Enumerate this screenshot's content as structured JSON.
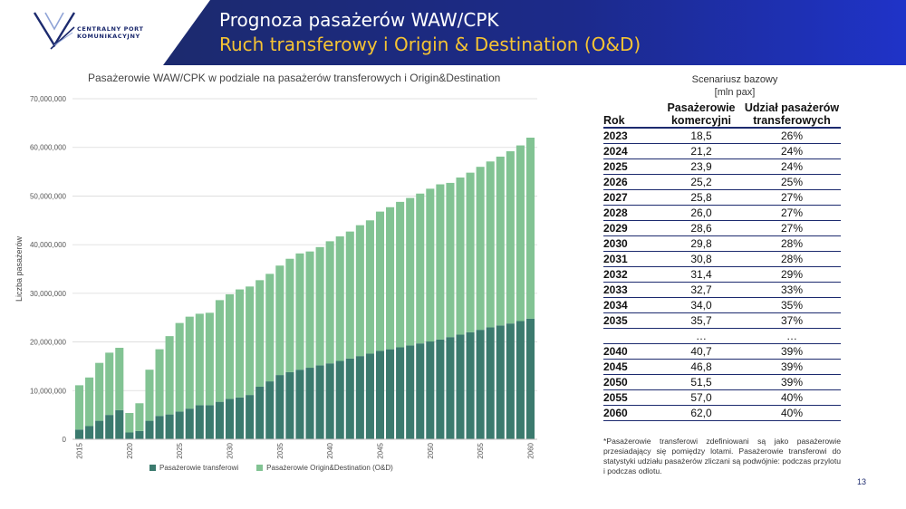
{
  "header": {
    "title_line1": "Prognoza pasażerów WAW/CPK",
    "title_line2": "Ruch transferowy i Origin & Destination (O&D)",
    "logo_text_line1": "CENTRALNY PORT",
    "logo_text_line2": "KOMUNIKACYJNY",
    "colors": {
      "navy": "#1c2a6e",
      "blue": "#1f33b8",
      "gold": "#f6c433"
    }
  },
  "chart_data": {
    "type": "bar",
    "stacked": true,
    "title": "Pasażerowie WAW/CPK w podziale na pasażerów transferowych i Origin&Destination",
    "xlabel": "",
    "ylabel": "Liczba pasażerów",
    "ylim": [
      0,
      70000000
    ],
    "yticks": [
      "0",
      "10,000,000",
      "20,000,000",
      "30,000,000",
      "40,000,000",
      "50,000,000",
      "60,000,000",
      "70,000,000"
    ],
    "ytick_values": [
      0,
      10000000,
      20000000,
      30000000,
      40000000,
      50000000,
      60000000,
      70000000
    ],
    "xtick_labels": [
      "2015",
      "2020",
      "2025",
      "2030",
      "2035",
      "2040",
      "2045",
      "2050",
      "2055",
      "2060"
    ],
    "categories": [
      2015,
      2016,
      2017,
      2018,
      2019,
      2020,
      2021,
      2022,
      2023,
      2024,
      2025,
      2026,
      2027,
      2028,
      2029,
      2030,
      2031,
      2032,
      2033,
      2034,
      2035,
      2036,
      2037,
      2038,
      2039,
      2040,
      2041,
      2042,
      2043,
      2044,
      2045,
      2046,
      2047,
      2048,
      2049,
      2050,
      2051,
      2052,
      2053,
      2054,
      2055,
      2056,
      2057,
      2058,
      2059,
      2060
    ],
    "series": [
      {
        "name": "Pasażerowie transferowi",
        "color": "#3b7a6e",
        "values": [
          2000000,
          2700000,
          3800000,
          5000000,
          6000000,
          1400000,
          1700000,
          3800000,
          4800000,
          5100000,
          5700000,
          6300000,
          7000000,
          7000000,
          7700000,
          8300000,
          8600000,
          9100000,
          10800000,
          11900000,
          13200000,
          13800000,
          14300000,
          14700000,
          15200000,
          15600000,
          16100000,
          16600000,
          17100000,
          17600000,
          18200000,
          18500000,
          18900000,
          19300000,
          19700000,
          20100000,
          20500000,
          21000000,
          21500000,
          22000000,
          22500000,
          23000000,
          23400000,
          23800000,
          24300000,
          24800000
        ]
      },
      {
        "name": "Pasażerowie Origin&Destination (O&D)",
        "color": "#82c393",
        "values": [
          9100000,
          10000000,
          11900000,
          12800000,
          12800000,
          4000000,
          5700000,
          10500000,
          13700000,
          16100000,
          18200000,
          18900000,
          18800000,
          19000000,
          20900000,
          21500000,
          22200000,
          22300000,
          21900000,
          22100000,
          22500000,
          23300000,
          23900000,
          23900000,
          24300000,
          25100000,
          25600000,
          26100000,
          26900000,
          27400000,
          28600000,
          29200000,
          29900000,
          30300000,
          30800000,
          31400000,
          31900000,
          31700000,
          32300000,
          32800000,
          33500000,
          34100000,
          34700000,
          35400000,
          36100000,
          37200000
        ]
      }
    ],
    "legend_position": "bottom",
    "grid": true
  },
  "legend": {
    "item1": "Pasażerowie transferowi",
    "item2": "Pasażerowie Origin&Destination (O&D)"
  },
  "table": {
    "scenario_title": "Scenariusz bazowy",
    "scenario_unit": "[mln pax]",
    "col_year": "Rok",
    "col_passengers": "Pasażerowie komercyjni",
    "col_transfer_share": "Udział pasażerów transferowych",
    "rows": [
      {
        "year": "2023",
        "pax": "18,5",
        "share": "26%"
      },
      {
        "year": "2024",
        "pax": "21,2",
        "share": "24%"
      },
      {
        "year": "2025",
        "pax": "23,9",
        "share": "24%"
      },
      {
        "year": "2026",
        "pax": "25,2",
        "share": "25%"
      },
      {
        "year": "2027",
        "pax": "25,8",
        "share": "27%"
      },
      {
        "year": "2028",
        "pax": "26,0",
        "share": "27%"
      },
      {
        "year": "2029",
        "pax": "28,6",
        "share": "27%"
      },
      {
        "year": "2030",
        "pax": "29,8",
        "share": "28%"
      },
      {
        "year": "2031",
        "pax": "30,8",
        "share": "28%"
      },
      {
        "year": "2032",
        "pax": "31,4",
        "share": "29%"
      },
      {
        "year": "2033",
        "pax": "32,7",
        "share": "33%"
      },
      {
        "year": "2034",
        "pax": "34,0",
        "share": "35%"
      },
      {
        "year": "2035",
        "pax": "35,7",
        "share": "37%"
      },
      {
        "year": "",
        "pax": "…",
        "share": "…"
      },
      {
        "year": "2040",
        "pax": "40,7",
        "share": "39%"
      },
      {
        "year": "2045",
        "pax": "46,8",
        "share": "39%"
      },
      {
        "year": "2050",
        "pax": "51,5",
        "share": "39%"
      },
      {
        "year": "2055",
        "pax": "57,0",
        "share": "40%"
      },
      {
        "year": "2060",
        "pax": "62,0",
        "share": "40%"
      }
    ]
  },
  "footnote": "*Pasażerowie transferowi zdefiniowani są jako pasażerowie przesiadający się pomiędzy lotami. Pasażerowie transferowi do statystyki udziału pasażerów zliczani są podwójnie: podczas przylotu i podczas odlotu.",
  "page_number": "13"
}
